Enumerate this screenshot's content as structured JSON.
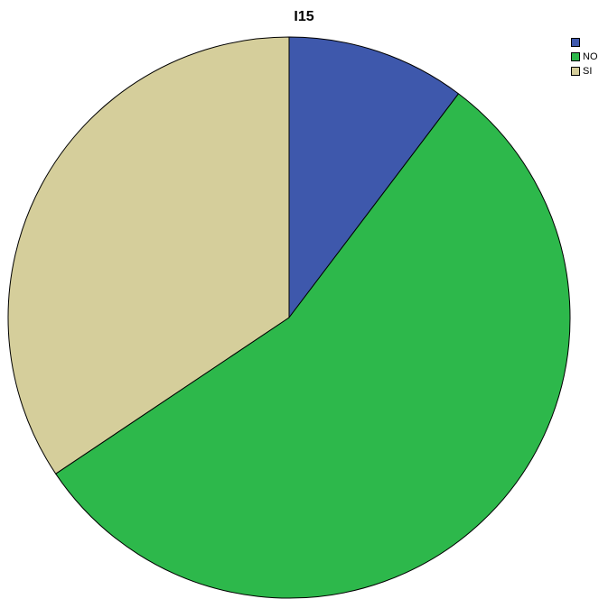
{
  "chart_data": {
    "type": "pie",
    "title": "I15",
    "slices": [
      {
        "label": "",
        "value": 10.3,
        "color": "#3e58ac"
      },
      {
        "label": "NO",
        "value": 55.3,
        "color": "#2db84b"
      },
      {
        "label": "SI",
        "value": 34.4,
        "color": "#d5ce9b"
      }
    ],
    "legend_position": "top-right",
    "start_angle_deg": 0,
    "direction": "clockwise"
  }
}
